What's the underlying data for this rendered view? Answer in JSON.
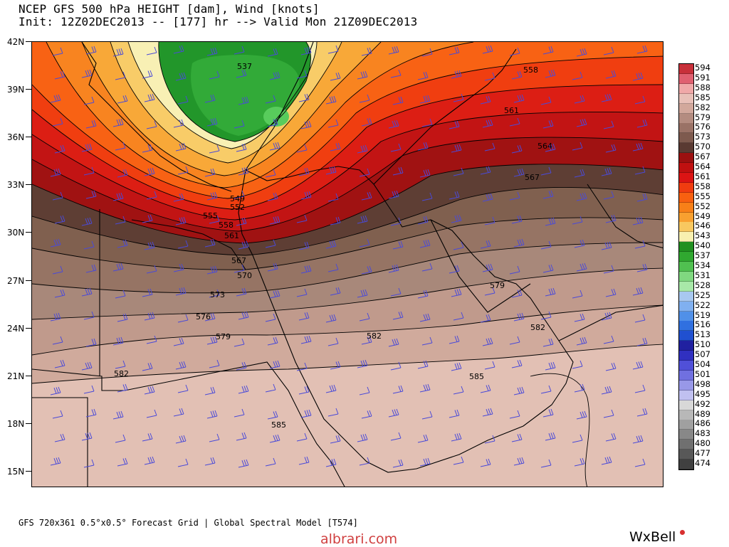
{
  "header": {
    "title_line1": "NCEP GFS 500 hPa HEIGHT [dam], Wind [knots]",
    "title_line2": "Init: 12Z02DEC2013 -- [177] hr --> Valid Mon 21Z09DEC2013"
  },
  "map": {
    "lat_labels": [
      "42N",
      "39N",
      "36N",
      "33N",
      "30N",
      "27N",
      "24N",
      "21N",
      "18N",
      "15N"
    ],
    "contour_labels": [
      "537",
      "549",
      "552",
      "555",
      "558",
      "561",
      "567",
      "570",
      "573",
      "576",
      "579",
      "582",
      "582",
      "585",
      "585",
      "558",
      "561",
      "564",
      "567",
      "579",
      "582"
    ],
    "wind_barb_color": "#4a4ad8"
  },
  "colorbar": {
    "levels": [
      "594",
      "591",
      "588",
      "585",
      "582",
      "579",
      "576",
      "573",
      "570",
      "567",
      "564",
      "561",
      "558",
      "555",
      "552",
      "549",
      "546",
      "543",
      "540",
      "537",
      "534",
      "531",
      "528",
      "525",
      "522",
      "519",
      "516",
      "513",
      "510",
      "507",
      "504",
      "501",
      "498",
      "495",
      "492",
      "489",
      "486",
      "483",
      "480",
      "477",
      "474"
    ],
    "colors": [
      "#c8303a",
      "#e06070",
      "#f0a8a8",
      "#e8c0b8",
      "#d2a89c",
      "#b48c80",
      "#9a7266",
      "#7e5a4e",
      "#5a3a32",
      "#9c1010",
      "#c01010",
      "#dc1414",
      "#f03c10",
      "#f86010",
      "#f88018",
      "#f8a030",
      "#f8c860",
      "#f8f0b0",
      "#209020",
      "#30a830",
      "#50c050",
      "#80d880",
      "#a8e8a8",
      "#a8c8f0",
      "#80b0f0",
      "#5090e8",
      "#3070e0",
      "#2050d0",
      "#2020a0",
      "#3030c0",
      "#5050d8",
      "#7070e0",
      "#9898e8",
      "#c0c0f0",
      "#d8d8d8",
      "#b8b8b8",
      "#a0a0a0",
      "#888888",
      "#707070",
      "#585858",
      "#404040"
    ]
  },
  "footer": {
    "info": "GFS 720x361 0.5°x0.5° Forecast Grid | Global Spectral Model [T574]",
    "watermark": "albrari.com",
    "brand": "WxBell"
  }
}
